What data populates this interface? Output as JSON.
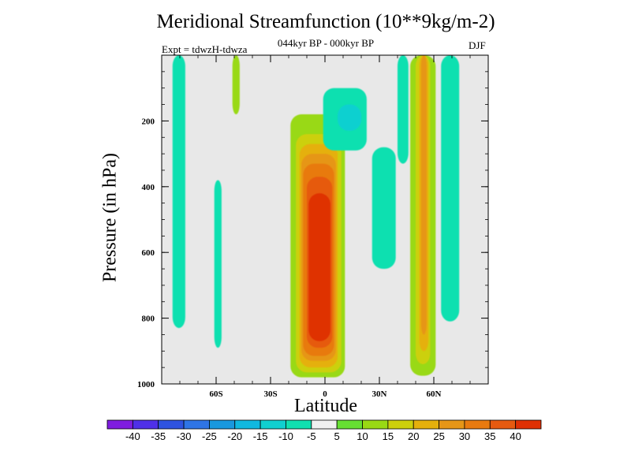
{
  "colors": {
    "background": "#e8e8e8",
    "palette": [
      "#7f1de0",
      "#4f30e8",
      "#2f53e0",
      "#2f75e6",
      "#1998de",
      "#10b8e0",
      "#10d0d0",
      "#10e0b0",
      "#f0f0f0",
      "#66e033",
      "#99d914",
      "#ccd00c",
      "#e5b00c",
      "#e69617",
      "#e87a0f",
      "#e65a10",
      "#df3004"
    ]
  },
  "chart_data": {
    "type": "heatmap",
    "title": "Meridional Streamfunction (10**9kg/m-2)",
    "subtitle": "044kyr BP - 000kyr BP",
    "annotation_left": "Expt = tdwzH-tdwza",
    "annotation_right": "DJF",
    "xlabel": "Latitude",
    "ylabel": "Pressure (in hPa)",
    "xlim": [
      -90,
      90
    ],
    "ylim": [
      1000,
      0
    ],
    "y_axis_reversed": true,
    "xticks": [
      {
        "value": -60,
        "label": "60S"
      },
      {
        "value": -30,
        "label": "30S"
      },
      {
        "value": 0,
        "label": "0"
      },
      {
        "value": 30,
        "label": "30N"
      },
      {
        "value": 60,
        "label": "60N"
      }
    ],
    "yticks": [
      {
        "value": 200,
        "label": "200"
      },
      {
        "value": 400,
        "label": "400"
      },
      {
        "value": 600,
        "label": "600"
      },
      {
        "value": 800,
        "label": "800"
      },
      {
        "value": 1000,
        "label": "1000"
      }
    ],
    "colorbar": {
      "labels": [
        "-40",
        "-35",
        "-30",
        "-25",
        "-20",
        "-15",
        "-10",
        "-5",
        "5",
        "10",
        "15",
        "20",
        "25",
        "30",
        "35",
        "40"
      ]
    },
    "regions": [
      {
        "lat": [
          -84,
          -77
        ],
        "p": [
          0,
          830
        ],
        "level": -7.5
      },
      {
        "lat": [
          -61,
          -57
        ],
        "p": [
          380,
          890
        ],
        "level": -7.5
      },
      {
        "lat": [
          -51,
          -47
        ],
        "p": [
          0,
          180
        ],
        "level": 7.5
      },
      {
        "lat": [
          -19,
          11
        ],
        "p": [
          180,
          980
        ],
        "level": 7.5
      },
      {
        "lat": [
          -16,
          9
        ],
        "p": [
          240,
          965
        ],
        "level": 12.5
      },
      {
        "lat": [
          -14,
          7
        ],
        "p": [
          270,
          950
        ],
        "level": 17.5
      },
      {
        "lat": [
          -13,
          6
        ],
        "p": [
          300,
          930
        ],
        "level": 22.5
      },
      {
        "lat": [
          -12,
          5
        ],
        "p": [
          330,
          915
        ],
        "level": 27.5
      },
      {
        "lat": [
          -10,
          4
        ],
        "p": [
          370,
          890
        ],
        "level": 32.5
      },
      {
        "lat": [
          -9,
          3
        ],
        "p": [
          420,
          870
        ],
        "level": 37.5
      },
      {
        "lat": [
          -1,
          23
        ],
        "p": [
          100,
          290
        ],
        "level": -7.5
      },
      {
        "lat": [
          7,
          20
        ],
        "p": [
          150,
          230
        ],
        "level": -12.5
      },
      {
        "lat": [
          26,
          39
        ],
        "p": [
          280,
          650
        ],
        "level": -7.5
      },
      {
        "lat": [
          40,
          46
        ],
        "p": [
          0,
          330
        ],
        "level": -7.5
      },
      {
        "lat": [
          47,
          61
        ],
        "p": [
          0,
          975
        ],
        "level": 7.5
      },
      {
        "lat": [
          50,
          58
        ],
        "p": [
          0,
          940
        ],
        "level": 12.5
      },
      {
        "lat": [
          52,
          57
        ],
        "p": [
          0,
          900
        ],
        "level": 17.5
      },
      {
        "lat": [
          53,
          56
        ],
        "p": [
          0,
          850
        ],
        "level": 22.5
      },
      {
        "lat": [
          64,
          74
        ],
        "p": [
          0,
          810
        ],
        "level": -7.5
      }
    ]
  }
}
